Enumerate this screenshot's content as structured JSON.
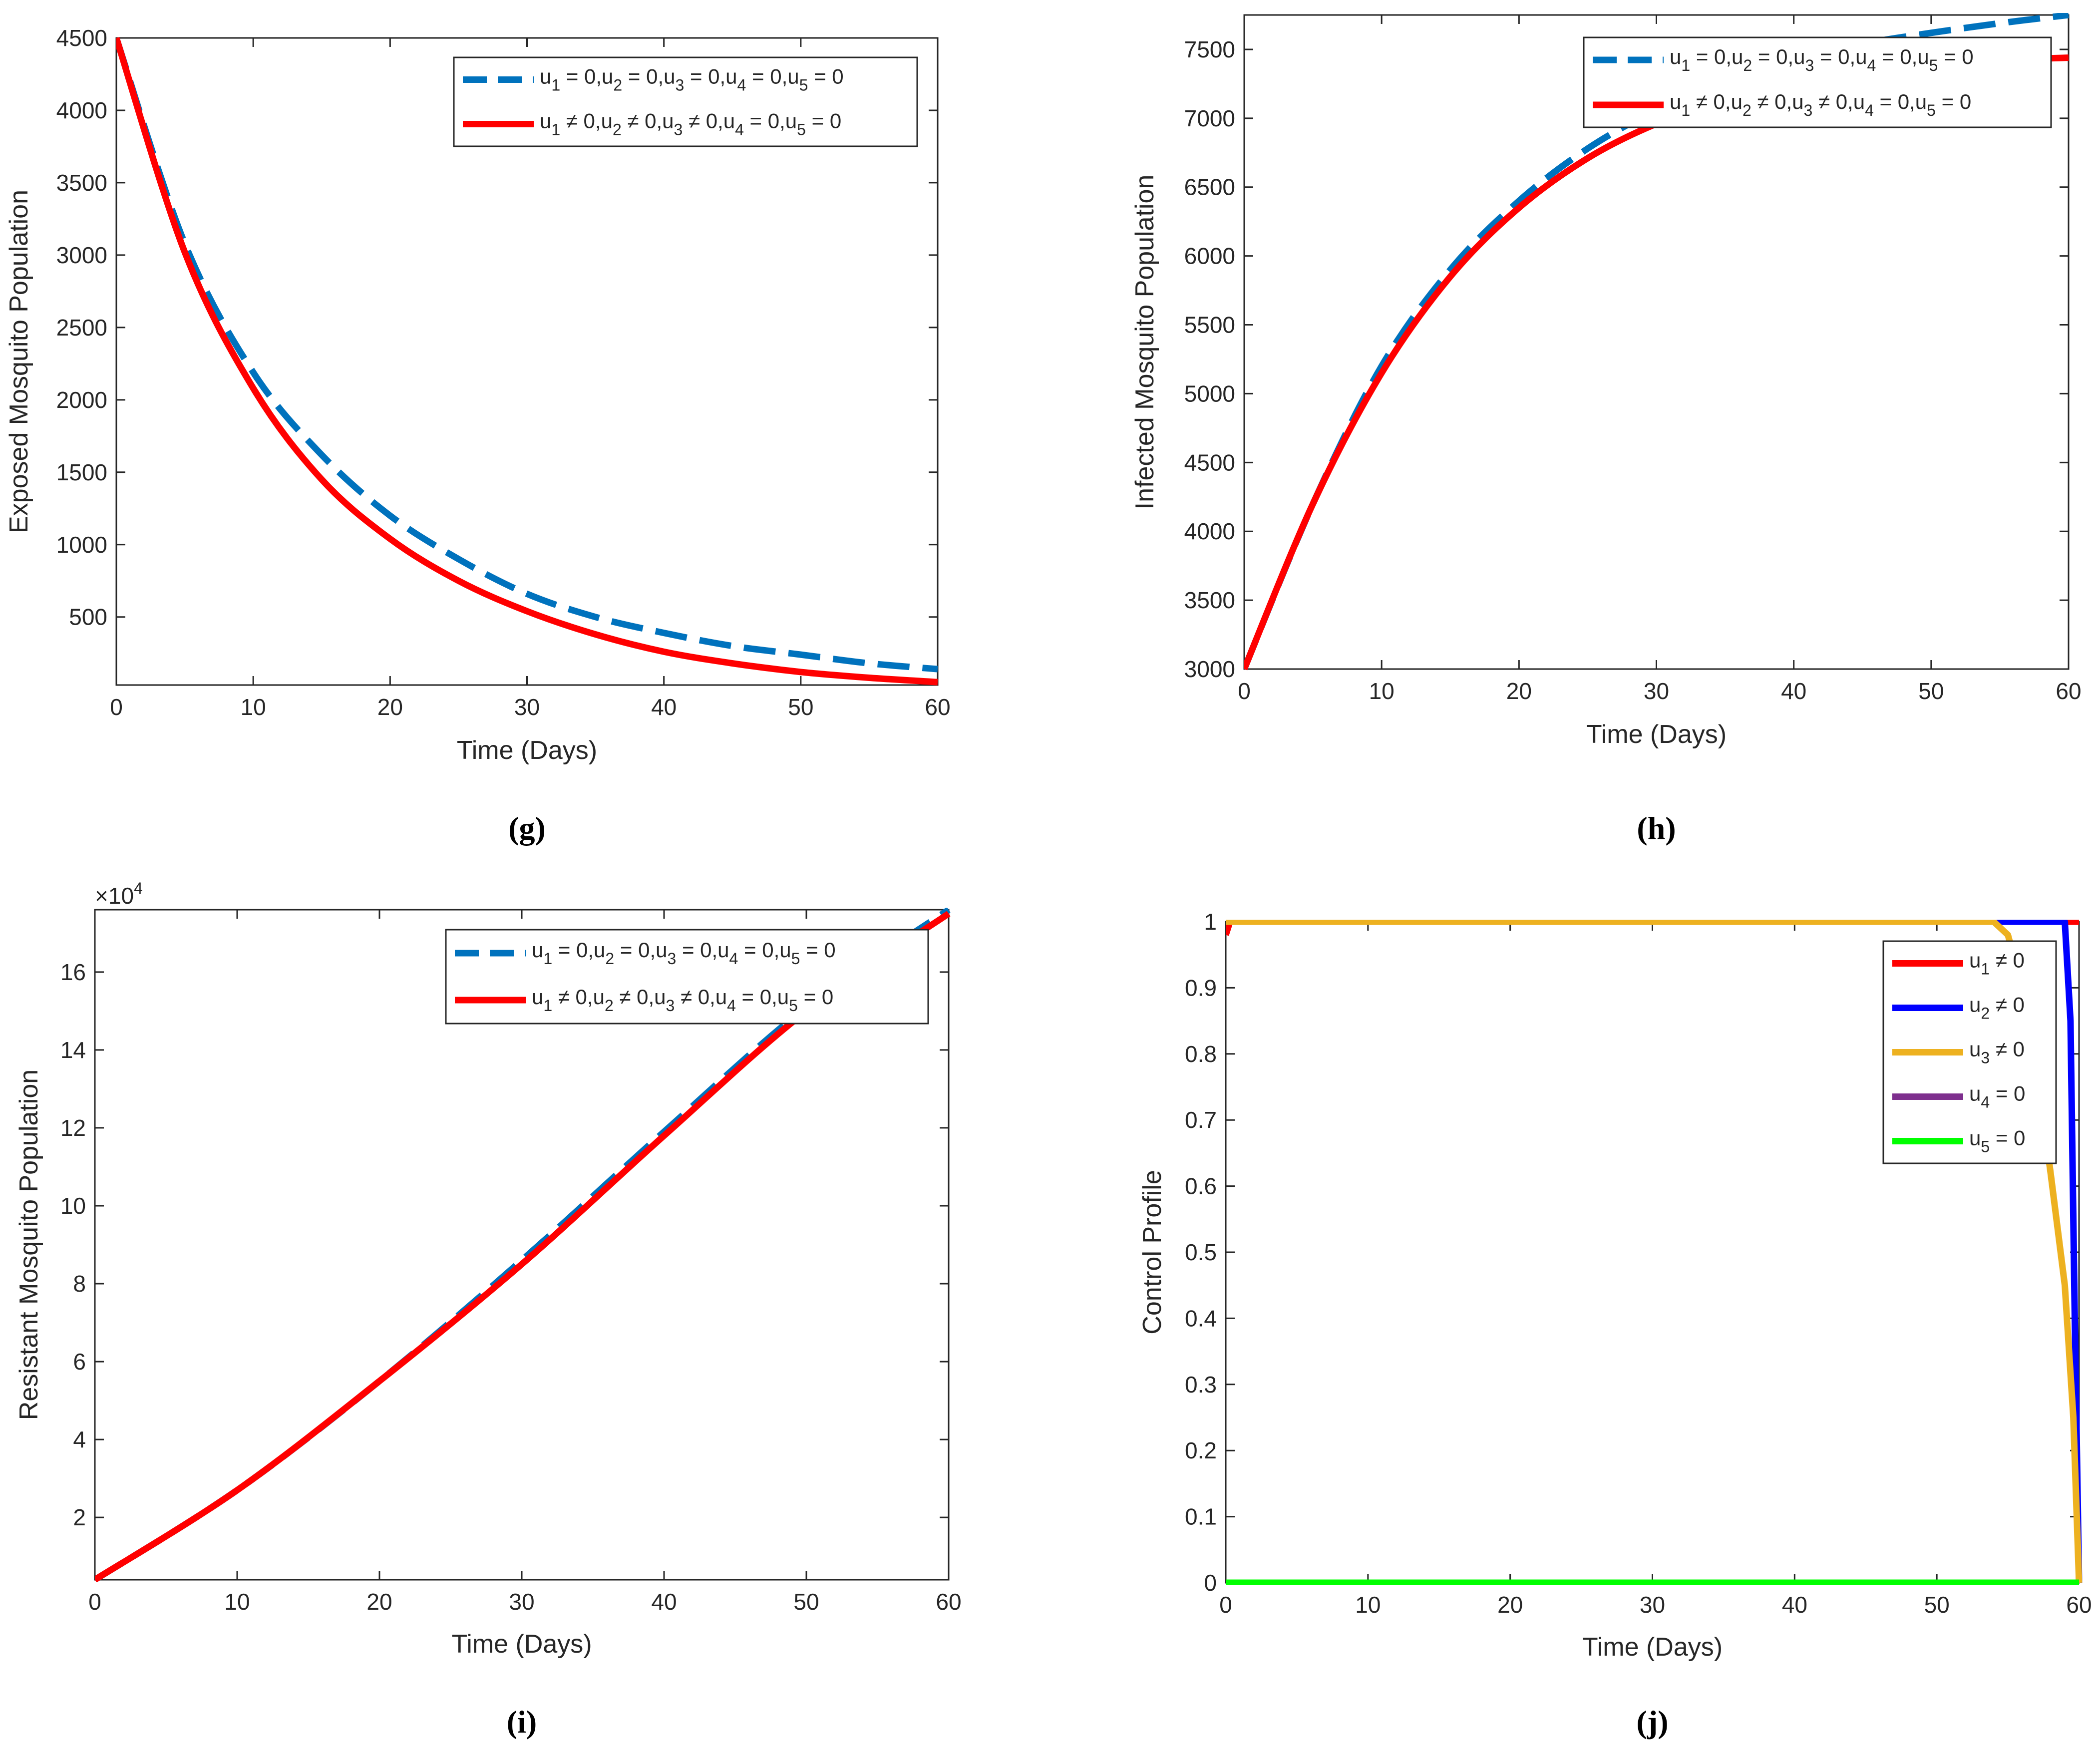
{
  "panels": [
    "(g)",
    "(h)",
    "(i)",
    "(j)"
  ],
  "chart_data": [
    {
      "type": "line",
      "panel": "(g)",
      "xlabel": "Time (Days)",
      "ylabel": "Exposed Mosquito Population",
      "xlim": [
        0,
        60
      ],
      "ylim": [
        30,
        4500
      ],
      "xticks": [
        0,
        10,
        20,
        30,
        40,
        50,
        60
      ],
      "yticks": [
        500,
        1000,
        1500,
        2000,
        2500,
        3000,
        3500,
        4000,
        4500
      ],
      "legend_position": "top-right",
      "x": [
        0,
        5,
        10,
        15,
        20,
        25,
        30,
        35,
        40,
        45,
        50,
        55,
        60
      ],
      "series": [
        {
          "name": "u₁ = 0,u₂ = 0,u₃ = 0,u₄ = 0,u₅ = 0",
          "color": "#0072BD",
          "style": "dashed",
          "values": [
            4500,
            3080,
            2190,
            1620,
            1200,
            900,
            660,
            500,
            390,
            300,
            240,
            180,
            140
          ]
        },
        {
          "name": "u₁ ≠ 0,u₂ ≠ 0,u₃ ≠ 0,u₄ = 0,u₅ = 0",
          "color": "#FF0000",
          "style": "solid",
          "values": [
            4500,
            3020,
            2080,
            1450,
            1040,
            750,
            540,
            380,
            260,
            180,
            120,
            80,
            50
          ]
        }
      ]
    },
    {
      "type": "line",
      "panel": "(h)",
      "xlabel": "Time (Days)",
      "ylabel": "Infected Mosquito Population",
      "xlim": [
        0,
        60
      ],
      "ylim": [
        3000,
        7750
      ],
      "xticks": [
        0,
        10,
        20,
        30,
        40,
        50,
        60
      ],
      "yticks": [
        3000,
        3500,
        4000,
        4500,
        5000,
        5500,
        6000,
        6500,
        7000,
        7500
      ],
      "legend_position": "top-right",
      "x": [
        0,
        5,
        10,
        15,
        20,
        25,
        30,
        35,
        40,
        45,
        50,
        55,
        60
      ],
      "series": [
        {
          "name": "u₁ = 0,u₂ = 0,u₃ = 0,u₄ = 0,u₅ = 0",
          "color": "#0072BD",
          "style": "dashed",
          "values": [
            3000,
            4200,
            5200,
            5900,
            6400,
            6780,
            7060,
            7270,
            7420,
            7540,
            7620,
            7690,
            7750
          ]
        },
        {
          "name": "u₁ ≠ 0,u₂ ≠ 0,u₃ ≠ 0,u₄ = 0,u₅ = 0",
          "color": "#FF0000",
          "style": "solid",
          "values": [
            3000,
            4200,
            5150,
            5850,
            6350,
            6710,
            6960,
            7130,
            7250,
            7330,
            7380,
            7420,
            7440
          ]
        }
      ]
    },
    {
      "type": "line",
      "panel": "(i)",
      "xlabel": "Time (Days)",
      "ylabel": "Resistant Mosquito Population",
      "y_multiplier": "×10",
      "y_multiplier_exp": "4",
      "xlim": [
        0,
        60
      ],
      "ylim": [
        0.4,
        17.6
      ],
      "xticks": [
        0,
        10,
        20,
        30,
        40,
        50,
        60
      ],
      "yticks": [
        2,
        4,
        6,
        8,
        10,
        12,
        14,
        16
      ],
      "legend_position": "top-right",
      "x": [
        0,
        10,
        20,
        30,
        40,
        50,
        60
      ],
      "series": [
        {
          "name": "u₁ = 0,u₂ = 0,u₃ = 0,u₄ = 0,u₅ = 0",
          "color": "#0072BD",
          "style": "dashed",
          "values": [
            0.4,
            2.7,
            5.5,
            8.6,
            11.9,
            15.1,
            17.6
          ]
        },
        {
          "name": "u₁ ≠ 0,u₂ ≠ 0,u₃ ≠ 0,u₄ = 0,u₅ = 0",
          "color": "#FF0000",
          "style": "solid",
          "values": [
            0.4,
            2.7,
            5.5,
            8.5,
            11.8,
            15.0,
            17.5
          ]
        }
      ]
    },
    {
      "type": "line",
      "panel": "(j)",
      "xlabel": "Time (Days)",
      "ylabel": "Control Profile",
      "xlim": [
        0,
        60
      ],
      "ylim": [
        0,
        1
      ],
      "xticks": [
        0,
        10,
        20,
        30,
        40,
        50,
        60
      ],
      "yticks": [
        0,
        0.1,
        0.2,
        0.3,
        0.4,
        0.5,
        0.6,
        0.7,
        0.8,
        0.9,
        1
      ],
      "legend_position": "top-right",
      "series": [
        {
          "name": "u₁ ≠ 0",
          "color": "#FF0000",
          "x": [
            0,
            0.3,
            59.8,
            60
          ],
          "values": [
            0.98,
            1,
            1,
            1
          ]
        },
        {
          "name": "u₂ ≠ 0",
          "color": "#0000FF",
          "x": [
            0,
            59.0,
            59.4,
            59.7,
            60
          ],
          "values": [
            1,
            1,
            0.85,
            0.4,
            0
          ]
        },
        {
          "name": "u₃ ≠ 0",
          "color": "#EDB120",
          "x": [
            0,
            54.0,
            55.0,
            56.0,
            57.0,
            58.0,
            59.0,
            59.6,
            60
          ],
          "values": [
            1,
            1,
            0.98,
            0.9,
            0.78,
            0.62,
            0.45,
            0.25,
            0
          ]
        },
        {
          "name": "u₄ = 0",
          "color": "#7E2F8E",
          "x": [
            0,
            60
          ],
          "values": [
            0,
            0
          ]
        },
        {
          "name": "u₅ = 0",
          "color": "#00FF00",
          "x": [
            0,
            60
          ],
          "values": [
            0,
            0
          ]
        }
      ]
    }
  ]
}
